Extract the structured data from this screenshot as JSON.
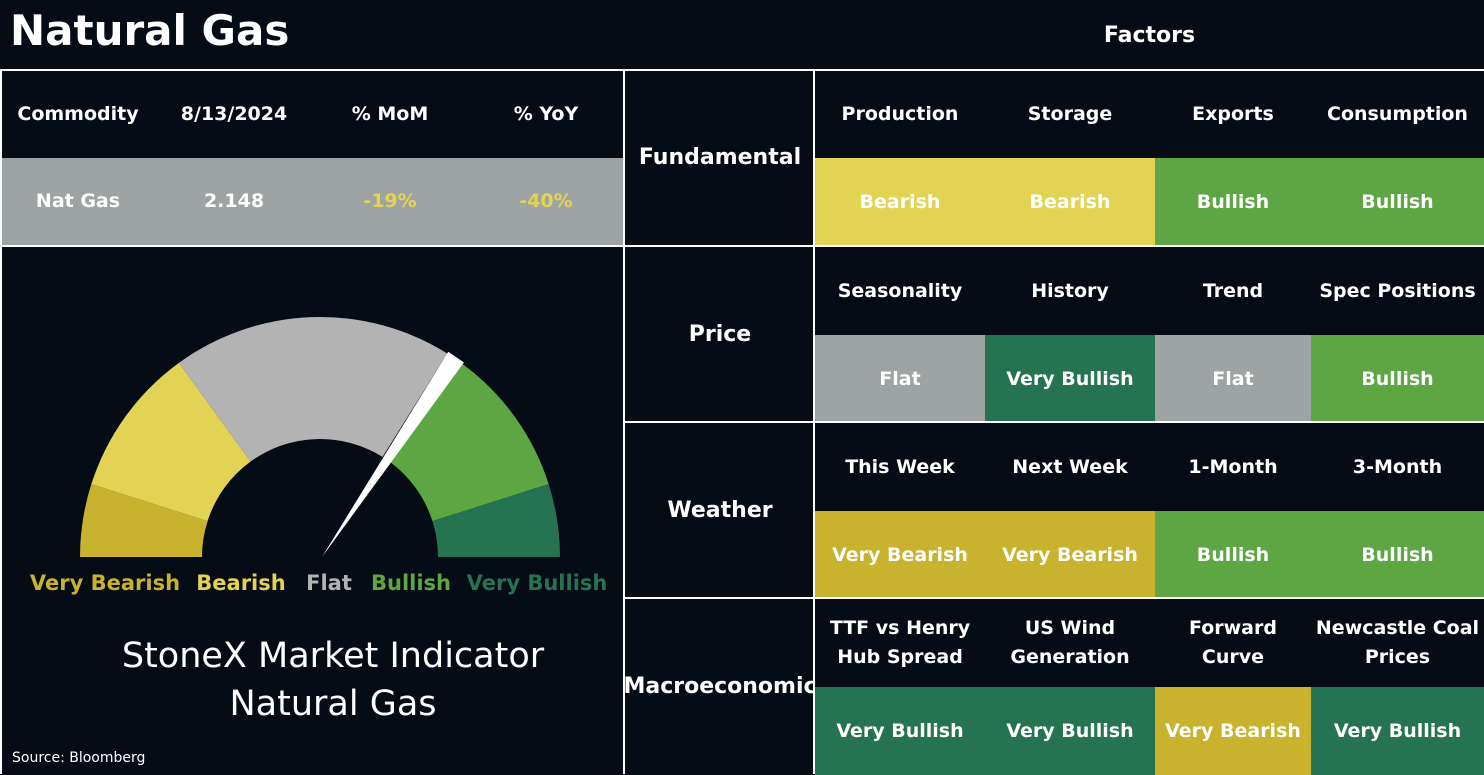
{
  "header": {
    "title": "Natural Gas",
    "factors_title": "Factors"
  },
  "commodity_table": {
    "headers": [
      "Commodity",
      "8/13/2024",
      "% MoM",
      "% YoY"
    ],
    "row": [
      "Nat Gas",
      "2.148",
      "-19%",
      "-40%"
    ],
    "row_colors": [
      "#ffffff",
      "#ffffff",
      "#e2d355",
      "#e2d355"
    ],
    "row_background": "#9ea3a3"
  },
  "gauge": {
    "labels": [
      {
        "text": "Very Bearish",
        "color": "#c9b22e"
      },
      {
        "text": "Bearish",
        "color": "#e2d355"
      },
      {
        "text": "Flat",
        "color": "#b3b3b3"
      },
      {
        "text": "Bullish",
        "color": "#5da643"
      },
      {
        "text": "Very Bullish",
        "color": "#267352"
      }
    ],
    "title_lines": [
      "StoneX Market Indicator",
      "Natural Gas"
    ]
  },
  "source": "Source: Bloomberg",
  "factor_groups": [
    {
      "name": "Fundamental",
      "factors": [
        {
          "name": "Production",
          "signal": "Bearish",
          "color": "#e2d355"
        },
        {
          "name": "Storage",
          "signal": "Bearish",
          "color": "#e2d355"
        },
        {
          "name": "Exports",
          "signal": "Bullish",
          "color": "#5da643"
        },
        {
          "name": "Consumption",
          "signal": "Bullish",
          "color": "#5da643"
        }
      ]
    },
    {
      "name": "Price",
      "factors": [
        {
          "name": "Seasonality",
          "signal": "Flat",
          "color": "#9ea3a3"
        },
        {
          "name": "History",
          "signal": "Very Bullish",
          "color": "#267352"
        },
        {
          "name": "Trend",
          "signal": "Flat",
          "color": "#9ea3a3"
        },
        {
          "name": "Spec Positions",
          "signal": "Bullish",
          "color": "#5da643"
        }
      ]
    },
    {
      "name": "Weather",
      "factors": [
        {
          "name": "This Week",
          "signal": "Very Bearish",
          "color": "#c9b22e"
        },
        {
          "name": "Next Week",
          "signal": "Very Bearish",
          "color": "#c9b22e"
        },
        {
          "name": "1-Month",
          "signal": "Bullish",
          "color": "#5da643"
        },
        {
          "name": "3-Month",
          "signal": "Bullish",
          "color": "#5da643"
        }
      ]
    },
    {
      "name": "Macroeconomic",
      "factors": [
        {
          "name": "TTF vs Henry\nHub Spread",
          "signal": "Very Bullish",
          "color": "#267352"
        },
        {
          "name": "US Wind\nGeneration",
          "signal": "Very Bullish",
          "color": "#267352"
        },
        {
          "name": "Forward\nCurve",
          "signal": "Very Bearish",
          "color": "#c9b22e"
        },
        {
          "name": "Newcastle Coal\nPrices",
          "signal": "Very Bullish",
          "color": "#267352"
        }
      ]
    }
  ]
}
